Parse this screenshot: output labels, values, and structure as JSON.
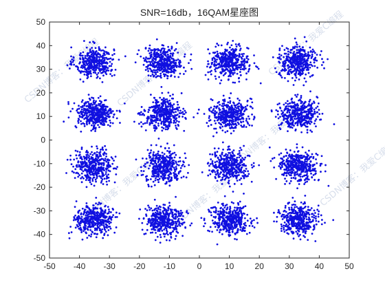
{
  "chart_data": {
    "type": "scatter",
    "title": "SNR=16db，16QAM星座图",
    "xlabel": "",
    "ylabel": "",
    "xlim": [
      -50,
      50
    ],
    "ylim": [
      -50,
      50
    ],
    "x_ticks": [
      -50,
      -40,
      -30,
      -20,
      -10,
      0,
      10,
      20,
      30,
      40,
      50
    ],
    "y_ticks": [
      -50,
      -40,
      -30,
      -20,
      -10,
      0,
      10,
      20,
      30,
      40,
      50
    ],
    "grid": false,
    "marker_color": "#1010e0",
    "constellation_points": [
      {
        "x": -35,
        "y": 33
      },
      {
        "x": -12,
        "y": 33
      },
      {
        "x": 10,
        "y": 33
      },
      {
        "x": 33,
        "y": 33
      },
      {
        "x": -35,
        "y": 11
      },
      {
        "x": -12,
        "y": 11
      },
      {
        "x": 10,
        "y": 11
      },
      {
        "x": 33,
        "y": 11
      },
      {
        "x": -35,
        "y": -11
      },
      {
        "x": -12,
        "y": -11
      },
      {
        "x": 10,
        "y": -11
      },
      {
        "x": 33,
        "y": -11
      },
      {
        "x": -35,
        "y": -34
      },
      {
        "x": -12,
        "y": -34
      },
      {
        "x": 10,
        "y": -34
      },
      {
        "x": 33,
        "y": -34
      }
    ],
    "cluster_spread_std": 3.2,
    "points_per_cluster": 400
  },
  "watermark": {
    "text": "CSDN博客：我爱C编程",
    "color": "#8fa3c8"
  }
}
